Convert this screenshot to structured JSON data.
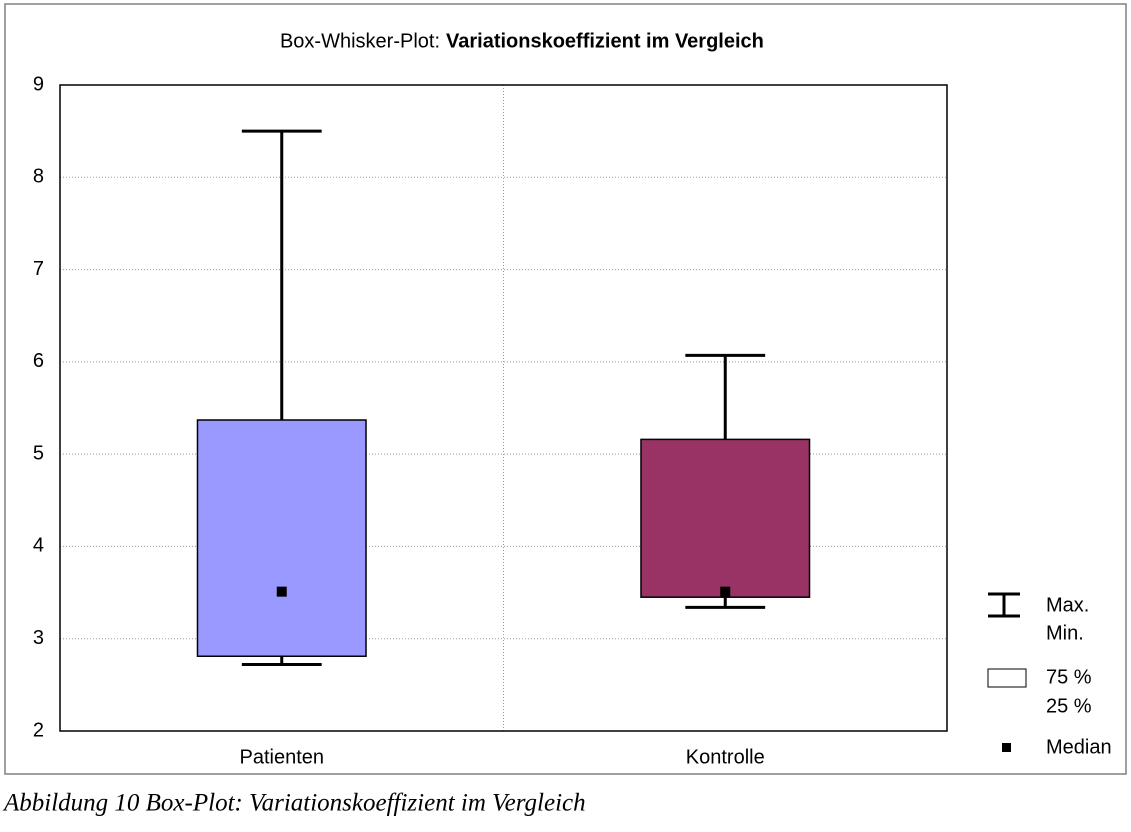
{
  "chart_data": {
    "type": "box",
    "title_prefix": "Box-Whisker-Plot:",
    "title": "Variationskoeffizient im Vergleich",
    "categories": [
      "Patienten",
      "Kontrolle"
    ],
    "boxes": [
      {
        "name": "Patienten",
        "color": "#9999ff",
        "min": 2.72,
        "q1": 2.81,
        "median": 3.51,
        "q3": 5.37,
        "max": 8.5
      },
      {
        "name": "Kontrolle",
        "color": "#993366",
        "min": 3.34,
        "q1": 3.45,
        "median": 3.51,
        "q3": 5.16,
        "max": 6.07
      }
    ],
    "ylim": [
      2,
      9
    ],
    "yticks": [
      2,
      3,
      4,
      5,
      6,
      7,
      8,
      9
    ],
    "grid": true,
    "legend": {
      "whisker": [
        "Max.",
        "Min."
      ],
      "box": [
        "75 %",
        "25 %"
      ],
      "median": "Median"
    }
  },
  "caption": "Abbildung 10 Box-Plot: Variationskoeffizient im Vergleich"
}
